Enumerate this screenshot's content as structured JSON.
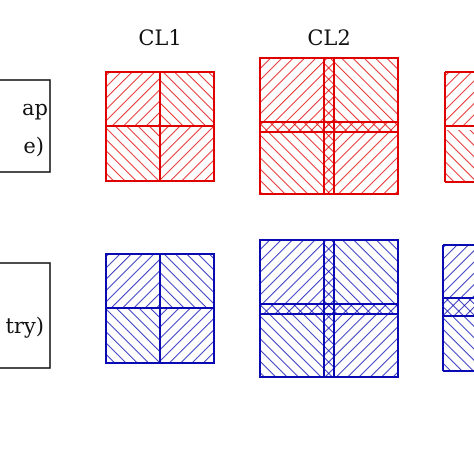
{
  "columns": [
    {
      "label": "CL1"
    },
    {
      "label": "CL2"
    }
  ],
  "rows": [
    {
      "label_line1": "ap",
      "label_line2": "e)",
      "color": "#e00000"
    },
    {
      "label_line1": "",
      "label_line2": "try)",
      "color": "#0a0ab4"
    }
  ]
}
